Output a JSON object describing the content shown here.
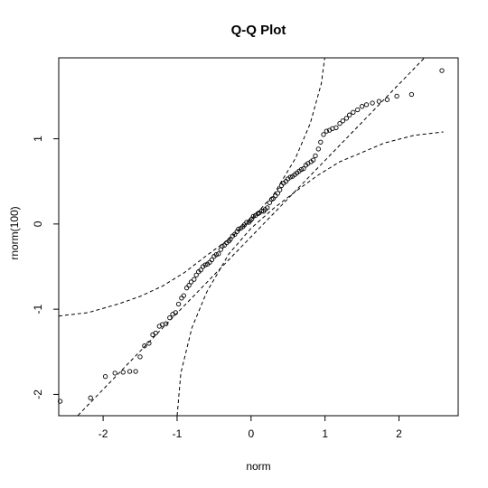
{
  "chart_data": {
    "type": "scatter",
    "title": "Q-Q Plot",
    "xlabel": "norm",
    "ylabel": "rnorm(100)",
    "xlim": [
      -2.6,
      2.8
    ],
    "ylim": [
      -2.25,
      1.95
    ],
    "x_ticks": [
      -2,
      -1,
      0,
      1,
      2
    ],
    "x_tick_labels": [
      "-2",
      "-1",
      "0",
      "1",
      "2"
    ],
    "y_ticks": [
      -2,
      -1,
      0,
      1
    ],
    "y_tick_labels": [
      "-2",
      "-1",
      "0",
      "1"
    ],
    "grid": false,
    "legend": "none",
    "marker": "open-circle",
    "points": {
      "x": [
        -2.58,
        -2.17,
        -1.97,
        -1.84,
        -1.73,
        -1.64,
        -1.56,
        -1.5,
        -1.44,
        -1.38,
        -1.33,
        -1.29,
        -1.24,
        -1.2,
        -1.15,
        -1.1,
        -1.06,
        -1.02,
        -0.98,
        -0.94,
        -0.91,
        -0.87,
        -0.84,
        -0.81,
        -0.77,
        -0.74,
        -0.71,
        -0.68,
        -0.65,
        -0.62,
        -0.59,
        -0.56,
        -0.53,
        -0.5,
        -0.47,
        -0.44,
        -0.41,
        -0.39,
        -0.36,
        -0.33,
        -0.3,
        -0.28,
        -0.25,
        -0.22,
        -0.19,
        -0.17,
        -0.14,
        -0.11,
        -0.09,
        -0.06,
        -0.03,
        -0.01,
        0.01,
        0.03,
        0.06,
        0.09,
        0.11,
        0.14,
        0.17,
        0.19,
        0.22,
        0.25,
        0.28,
        0.3,
        0.33,
        0.36,
        0.39,
        0.41,
        0.44,
        0.47,
        0.5,
        0.53,
        0.56,
        0.59,
        0.62,
        0.65,
        0.68,
        0.71,
        0.74,
        0.77,
        0.81,
        0.84,
        0.87,
        0.91,
        0.94,
        0.98,
        1.02,
        1.06,
        1.1,
        1.15,
        1.2,
        1.24,
        1.29,
        1.33,
        1.38,
        1.44,
        1.5,
        1.56,
        1.64,
        1.73,
        1.84,
        1.97,
        2.17,
        2.58
      ],
      "y": [
        -2.08,
        -2.04,
        -1.79,
        -1.75,
        -1.74,
        -1.73,
        -1.73,
        -1.56,
        -1.43,
        -1.4,
        -1.3,
        -1.28,
        -1.2,
        -1.18,
        -1.17,
        -1.1,
        -1.06,
        -1.04,
        -0.94,
        -0.87,
        -0.84,
        -0.75,
        -0.72,
        -0.68,
        -0.65,
        -0.6,
        -0.56,
        -0.54,
        -0.5,
        -0.48,
        -0.47,
        -0.45,
        -0.42,
        -0.38,
        -0.36,
        -0.35,
        -0.3,
        -0.26,
        -0.25,
        -0.22,
        -0.2,
        -0.18,
        -0.14,
        -0.12,
        -0.09,
        -0.06,
        -0.05,
        -0.03,
        -0.01,
        0.02,
        0.02,
        0.04,
        0.06,
        0.09,
        0.1,
        0.12,
        0.13,
        0.15,
        0.15,
        0.17,
        0.19,
        0.25,
        0.29,
        0.3,
        0.33,
        0.36,
        0.4,
        0.45,
        0.48,
        0.5,
        0.53,
        0.55,
        0.56,
        0.58,
        0.6,
        0.62,
        0.64,
        0.65,
        0.69,
        0.71,
        0.73,
        0.75,
        0.8,
        0.88,
        0.96,
        1.05,
        1.09,
        1.1,
        1.12,
        1.13,
        1.18,
        1.21,
        1.24,
        1.28,
        1.31,
        1.34,
        1.38,
        1.4,
        1.42,
        1.44,
        1.46,
        1.5,
        1.52,
        1.8
      ]
    },
    "reference_line": {
      "style": "dashed",
      "x": [
        -2.4,
        2.4
      ],
      "y": [
        -2.3,
        2.0
      ]
    },
    "confidence_bands": [
      {
        "style": "dashed",
        "x": [
          -2.6,
          -2.2,
          -1.8,
          -1.5,
          -1.2,
          -0.9,
          -0.6,
          -0.3,
          0.0,
          0.3,
          0.6,
          0.8,
          0.95,
          1.0
        ],
        "y": [
          -1.08,
          -1.04,
          -0.94,
          -0.85,
          -0.73,
          -0.57,
          -0.37,
          -0.18,
          0.05,
          0.34,
          0.77,
          1.18,
          1.65,
          1.98
        ]
      },
      {
        "style": "dashed",
        "x": [
          -1.0,
          -0.95,
          -0.8,
          -0.6,
          -0.3,
          0.0,
          0.3,
          0.6,
          0.9,
          1.2,
          1.5,
          1.8,
          2.2,
          2.6
        ],
        "y": [
          -2.25,
          -1.75,
          -1.22,
          -0.8,
          -0.35,
          -0.05,
          0.18,
          0.38,
          0.57,
          0.73,
          0.84,
          0.95,
          1.04,
          1.08
        ]
      }
    ]
  }
}
